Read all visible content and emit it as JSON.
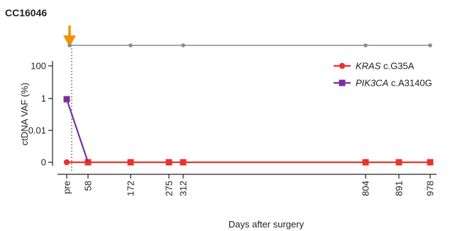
{
  "chart_data": {
    "type": "line",
    "title": "CC16046",
    "xlabel": "Days after surgery",
    "ylabel": "ctDNA VAF (%)",
    "x_categories": [
      "pre",
      "58",
      "172",
      "275",
      "312",
      "804",
      "891",
      "978"
    ],
    "x_scale_note": "non-linear ordinal spacing",
    "yscale": "log",
    "y_ticks": [
      "100",
      "1",
      "0.01",
      "0"
    ],
    "series": [
      {
        "name": "KRAS c.G35A",
        "gene": "KRAS",
        "mutation": "c.G35A",
        "color": "#e8342b",
        "x": [
          "pre",
          "58",
          "172",
          "275",
          "312",
          "804",
          "891",
          "978"
        ],
        "y": [
          0,
          0,
          0,
          0,
          0,
          0,
          0,
          0
        ]
      },
      {
        "name": "PIK3CA c.A3140G",
        "gene": "PIK3CA",
        "mutation": "c.A3140G",
        "color": "#7b2f9d",
        "x": [
          "pre",
          "58"
        ],
        "y": [
          0.9,
          0
        ]
      }
    ],
    "timeline": {
      "color": "#8c8c8c",
      "points": [
        "pre",
        "172",
        "312",
        "804",
        "978"
      ]
    },
    "surgery_marker": {
      "at": "pre",
      "color": "#f39200"
    },
    "legend_position": "top-right",
    "grid": false
  }
}
